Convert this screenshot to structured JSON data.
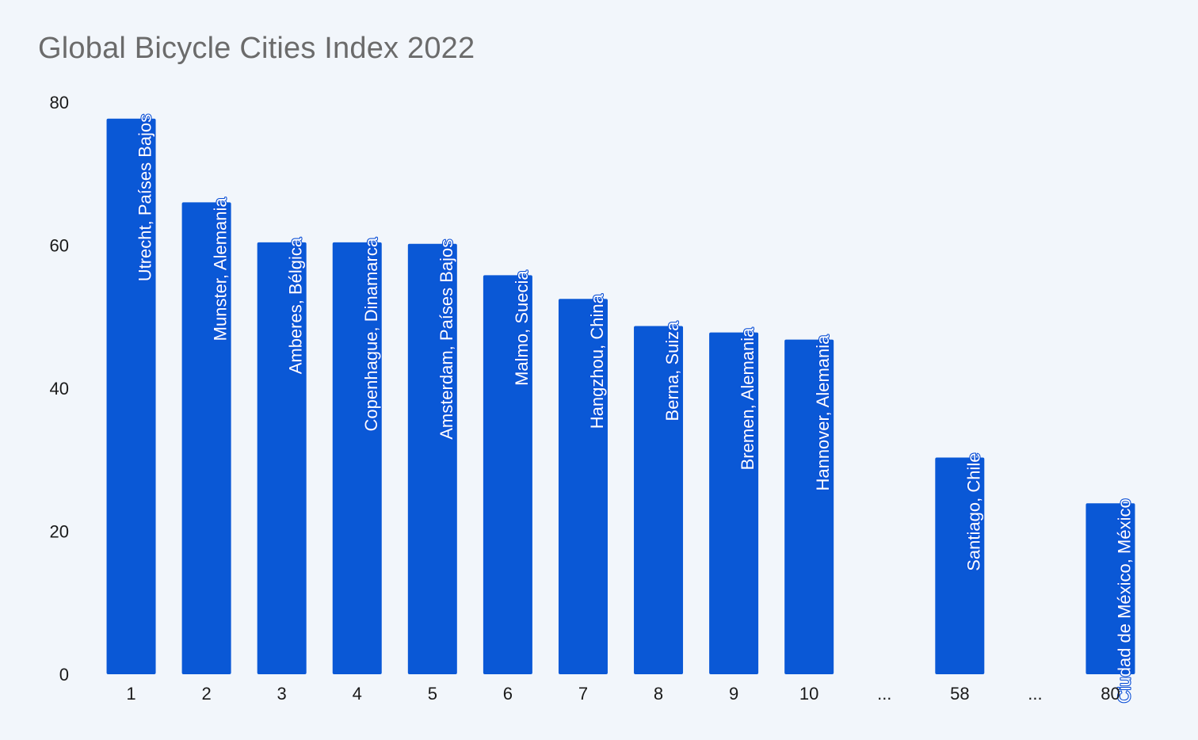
{
  "colors": {
    "background": "#f2f6fb",
    "bar": "#0a58d6",
    "title": "#6b6b6b",
    "label_text": "#ffffff",
    "label_outline": "#0b4fd6"
  },
  "chart_data": {
    "type": "bar",
    "title": "Global Bicycle Cities Index 2022",
    "xlabel": "",
    "ylabel": "",
    "ylim": [
      0,
      80
    ],
    "yticks": [
      0,
      20,
      40,
      60,
      80
    ],
    "grid": false,
    "categories": [
      "1",
      "2",
      "3",
      "4",
      "5",
      "6",
      "7",
      "8",
      "9",
      "10",
      "...",
      "58",
      "...",
      "80"
    ],
    "values": [
      77.7,
      66,
      60.4,
      60.4,
      60.2,
      55.8,
      52.5,
      48.7,
      47.8,
      46.8,
      null,
      30.3,
      null,
      23.9
    ],
    "bar_labels": [
      "Utrecht, Países Bajos",
      "Munster, Alemania",
      "Amberes, Bélgica",
      "Copenhague, Dinamarca",
      "Amsterdam, Países Bajos",
      "Malmo, Suecia",
      "Hangzhou, China",
      "Berna, Suiza",
      "Bremen, Alemania",
      "Hannover, Alemania",
      "",
      "Santiago, Chile",
      "",
      "Ciudad de México, México"
    ]
  }
}
